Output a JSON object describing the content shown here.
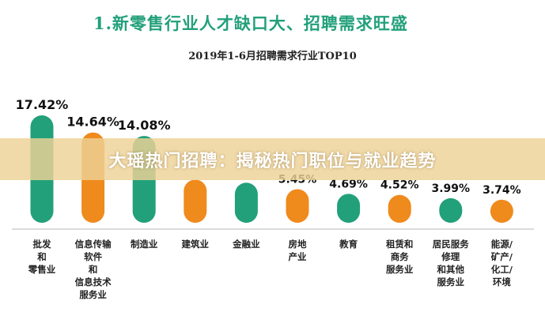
{
  "heading": "1.新零售行业人才缺口大、招聘需求旺盛",
  "banner": "大瑶热门招聘：揭秘热门职位与就业趋势",
  "colors": {
    "green": "#22a07a",
    "orange": "#ef8a1c",
    "axis": "#cfcfcf"
  },
  "chart_data": {
    "type": "bar",
    "title": "2019年1-6月招聘需求行业TOP10",
    "categories": [
      [
        "批发",
        "和",
        "零售业"
      ],
      [
        "信息传输",
        "软件",
        "和",
        "信息技术",
        "服务业"
      ],
      [
        "制造业"
      ],
      [
        "建筑业"
      ],
      [
        "金融业"
      ],
      [
        "房地",
        "产业"
      ],
      [
        "教育"
      ],
      [
        "租赁和",
        "商务",
        "服务业"
      ],
      [
        "居民服务",
        "修理",
        "和其他",
        "服务业"
      ],
      [
        "能源/",
        "矿产/",
        "化工/",
        "环境"
      ]
    ],
    "values": [
      17.42,
      14.64,
      14.08,
      7.0,
      6.5,
      5.45,
      4.69,
      4.52,
      3.99,
      3.74
    ],
    "value_labels": [
      "17.42%",
      "14.64%",
      "14.08%",
      "",
      "",
      "5.45%",
      "4.69%",
      "4.52%",
      "3.99%",
      "3.74%"
    ],
    "bar_colors": [
      "green",
      "orange",
      "green",
      "orange",
      "green",
      "orange",
      "green",
      "orange",
      "green",
      "orange"
    ],
    "ylim": [
      0,
      17.42
    ],
    "grid": false,
    "legend": "none"
  }
}
